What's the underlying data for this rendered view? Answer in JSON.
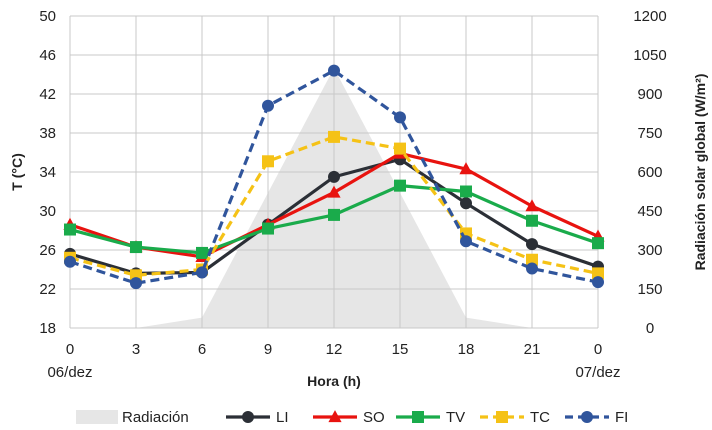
{
  "chart_data": {
    "type": "line",
    "x": [
      0,
      3,
      6,
      9,
      12,
      15,
      18,
      21,
      24
    ],
    "x_tick_labels": [
      "0",
      "3",
      "6",
      "9",
      "12",
      "15",
      "18",
      "21",
      "0"
    ],
    "x_date_labels": [
      {
        "at": 0,
        "text": "06/dez"
      },
      {
        "at": 24,
        "text": "07/dez"
      }
    ],
    "xlabel": "Hora (h)",
    "ylabel": "T  (°C)",
    "ylim": [
      18,
      50
    ],
    "y_ticks": [
      18,
      22,
      26,
      30,
      34,
      38,
      42,
      46,
      50
    ],
    "y2label": "Radiación solar global (W/m²)",
    "y2lim": [
      0,
      1200
    ],
    "y2_ticks": [
      0,
      150,
      300,
      450,
      600,
      750,
      900,
      1050,
      1200
    ],
    "grid": true,
    "legend_position": "bottom",
    "area": {
      "name": "Radiación",
      "axis": "right",
      "color": "#e6e6e6",
      "x": [
        3,
        6,
        12,
        18,
        21
      ],
      "values": [
        0,
        40,
        1000,
        40,
        0
      ]
    },
    "series": [
      {
        "name": "LI",
        "color": "#2b2f36",
        "dashed": false,
        "marker": "circle",
        "values": [
          25.6,
          23.6,
          23.7,
          28.6,
          33.5,
          35.3,
          30.8,
          26.6,
          24.3
        ]
      },
      {
        "name": "SO",
        "color": "#e8130f",
        "dashed": false,
        "marker": "triangle",
        "values": [
          28.6,
          26.3,
          25.3,
          28.6,
          31.9,
          35.9,
          34.3,
          30.5,
          27.4
        ]
      },
      {
        "name": "TV",
        "color": "#1aab4b",
        "dashed": false,
        "marker": "square",
        "values": [
          28.1,
          26.3,
          25.7,
          28.2,
          29.6,
          32.6,
          32.0,
          29.0,
          26.7
        ]
      },
      {
        "name": "TC",
        "color": "#f5c216",
        "dashed": true,
        "marker": "square",
        "values": [
          25.2,
          23.4,
          24.0,
          35.1,
          37.6,
          36.4,
          27.7,
          25.0,
          23.6
        ]
      },
      {
        "name": "FI",
        "color": "#30559c",
        "dashed": true,
        "marker": "circle",
        "values": [
          24.8,
          22.6,
          23.7,
          40.8,
          44.4,
          39.6,
          26.9,
          24.1,
          22.7
        ]
      }
    ]
  }
}
